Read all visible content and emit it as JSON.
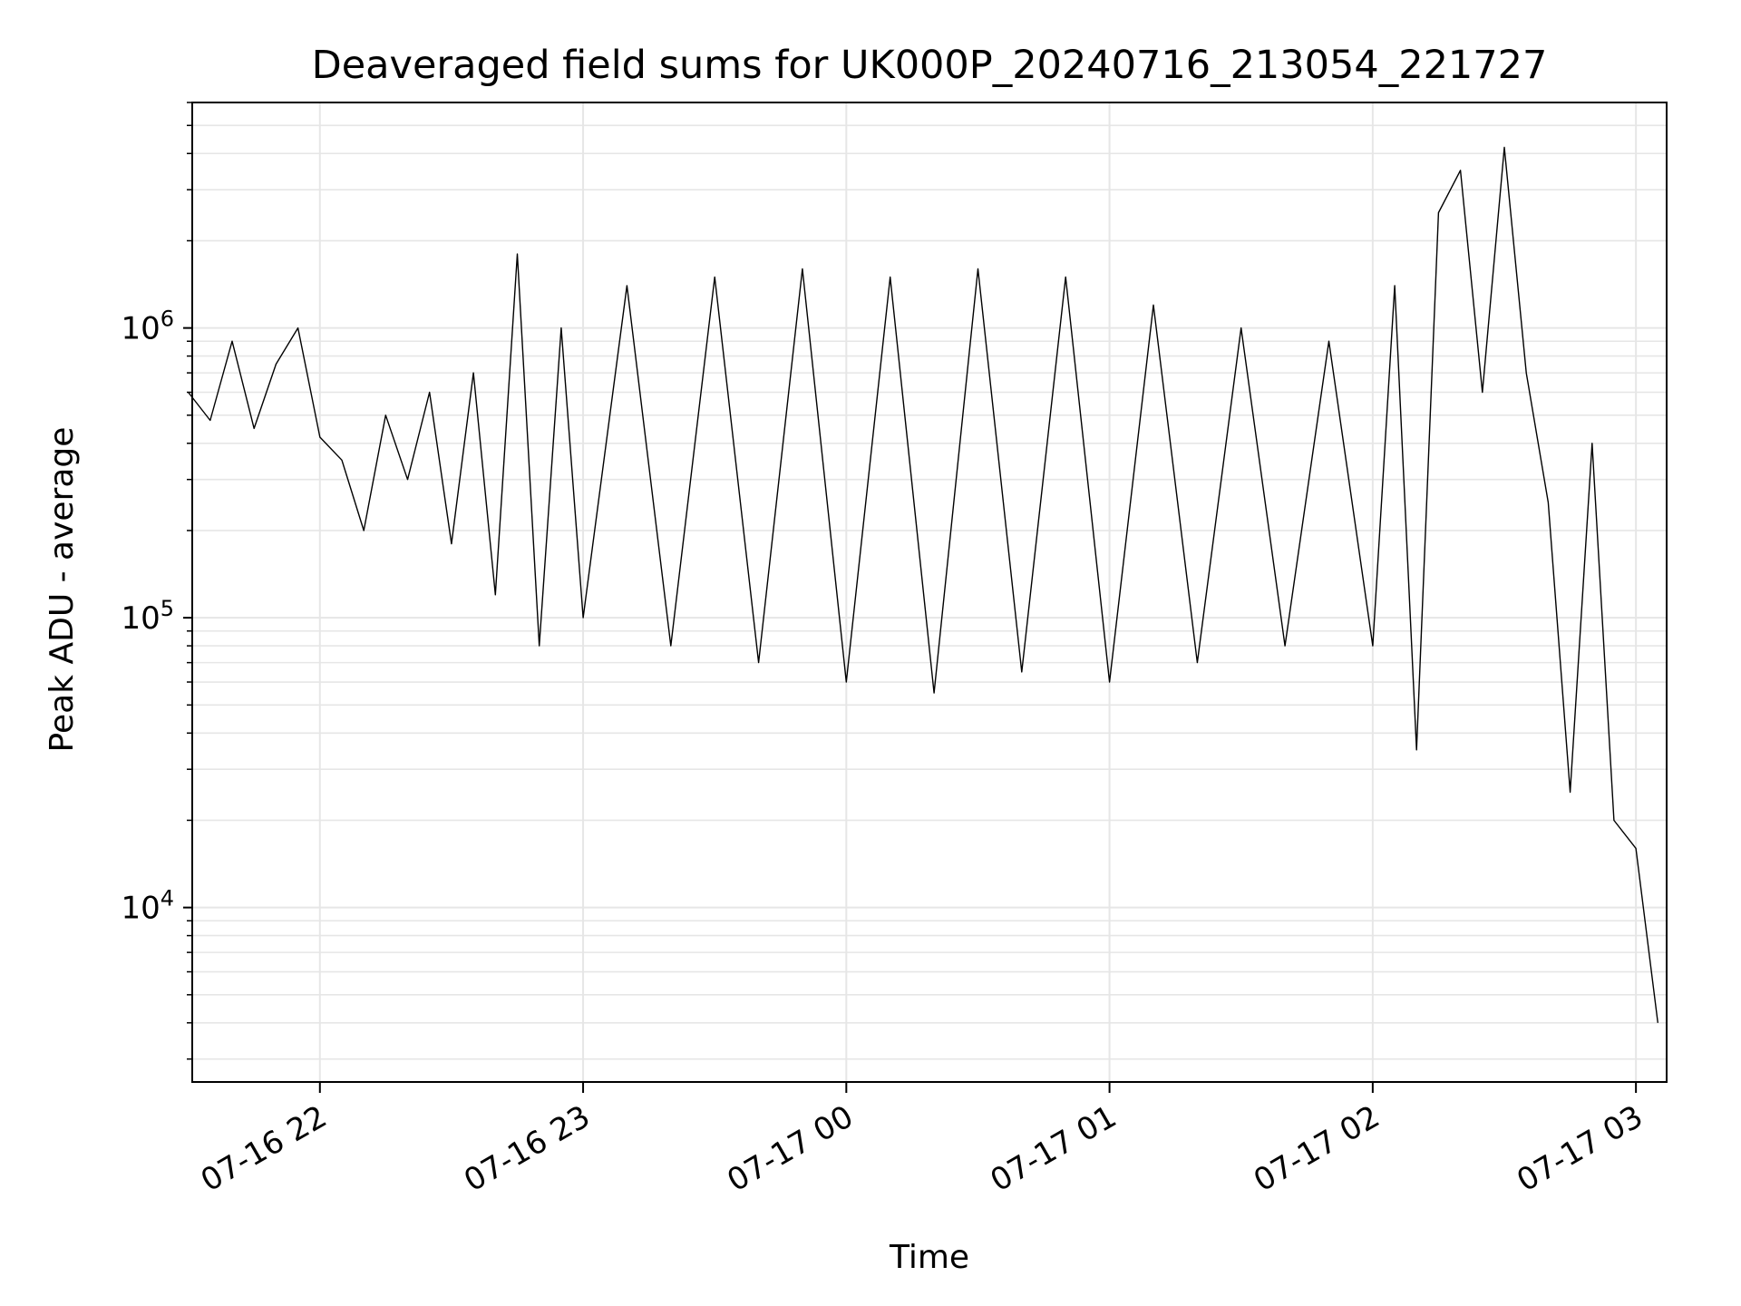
{
  "chart_data": {
    "type": "line",
    "title": "Deaveraged field sums for UK000P_20240716_213054_221727",
    "xlabel": "Time",
    "ylabel": "Peak ADU - average",
    "y_scale": "log",
    "ylim": [
      2500,
      6000000
    ],
    "xlim": [
      "2024-07-16 21:30:54",
      "2024-07-17 03:07:00"
    ],
    "grid": true,
    "line_color": "#000000",
    "grid_color": "#e6e6e6",
    "x_ticks": [
      {
        "time": "2024-07-16 22:00",
        "label": "07-16 22"
      },
      {
        "time": "2024-07-16 23:00",
        "label": "07-16 23"
      },
      {
        "time": "2024-07-17 00:00",
        "label": "07-17 00"
      },
      {
        "time": "2024-07-17 01:00",
        "label": "07-17 01"
      },
      {
        "time": "2024-07-17 02:00",
        "label": "07-17 02"
      },
      {
        "time": "2024-07-17 03:00",
        "label": "07-17 03"
      }
    ],
    "y_ticks": [
      {
        "value": 10000,
        "base": "10",
        "exp": "4"
      },
      {
        "value": 100000,
        "base": "10",
        "exp": "5"
      },
      {
        "value": 1000000,
        "base": "10",
        "exp": "6"
      }
    ],
    "series": [
      {
        "points": [
          [
            "2024-07-16 21:30",
            600000
          ],
          [
            "2024-07-16 21:35",
            480000
          ],
          [
            "2024-07-16 21:40",
            900000
          ],
          [
            "2024-07-16 21:45",
            450000
          ],
          [
            "2024-07-16 21:50",
            750000
          ],
          [
            "2024-07-16 21:55",
            1000000
          ],
          [
            "2024-07-16 22:00",
            420000
          ],
          [
            "2024-07-16 22:05",
            350000
          ],
          [
            "2024-07-16 22:10",
            200000
          ],
          [
            "2024-07-16 22:15",
            500000
          ],
          [
            "2024-07-16 22:20",
            300000
          ],
          [
            "2024-07-16 22:25",
            600000
          ],
          [
            "2024-07-16 22:30",
            180000
          ],
          [
            "2024-07-16 22:35",
            700000
          ],
          [
            "2024-07-16 22:40",
            120000
          ],
          [
            "2024-07-16 22:45",
            1800000
          ],
          [
            "2024-07-16 22:50",
            80000
          ],
          [
            "2024-07-16 22:55",
            1000000
          ],
          [
            "2024-07-16 23:00",
            100000
          ],
          [
            "2024-07-16 23:10",
            1400000
          ],
          [
            "2024-07-16 23:20",
            80000
          ],
          [
            "2024-07-16 23:30",
            1500000
          ],
          [
            "2024-07-16 23:40",
            70000
          ],
          [
            "2024-07-16 23:50",
            1600000
          ],
          [
            "2024-07-17 00:00",
            60000
          ],
          [
            "2024-07-17 00:10",
            1500000
          ],
          [
            "2024-07-17 00:20",
            55000
          ],
          [
            "2024-07-17 00:30",
            1600000
          ],
          [
            "2024-07-17 00:40",
            65000
          ],
          [
            "2024-07-17 00:50",
            1500000
          ],
          [
            "2024-07-17 01:00",
            60000
          ],
          [
            "2024-07-17 01:10",
            1200000
          ],
          [
            "2024-07-17 01:20",
            70000
          ],
          [
            "2024-07-17 01:30",
            1000000
          ],
          [
            "2024-07-17 01:40",
            80000
          ],
          [
            "2024-07-17 01:50",
            900000
          ],
          [
            "2024-07-17 02:00",
            80000
          ],
          [
            "2024-07-17 02:05",
            1400000
          ],
          [
            "2024-07-17 02:10",
            35000
          ],
          [
            "2024-07-17 02:15",
            2500000
          ],
          [
            "2024-07-17 02:20",
            3500000
          ],
          [
            "2024-07-17 02:25",
            600000
          ],
          [
            "2024-07-17 02:30",
            4200000
          ],
          [
            "2024-07-17 02:35",
            700000
          ],
          [
            "2024-07-17 02:40",
            250000
          ],
          [
            "2024-07-17 02:45",
            25000
          ],
          [
            "2024-07-17 02:50",
            400000
          ],
          [
            "2024-07-17 02:55",
            20000
          ],
          [
            "2024-07-17 03:00",
            16000
          ],
          [
            "2024-07-17 03:05",
            4000
          ]
        ]
      }
    ]
  }
}
